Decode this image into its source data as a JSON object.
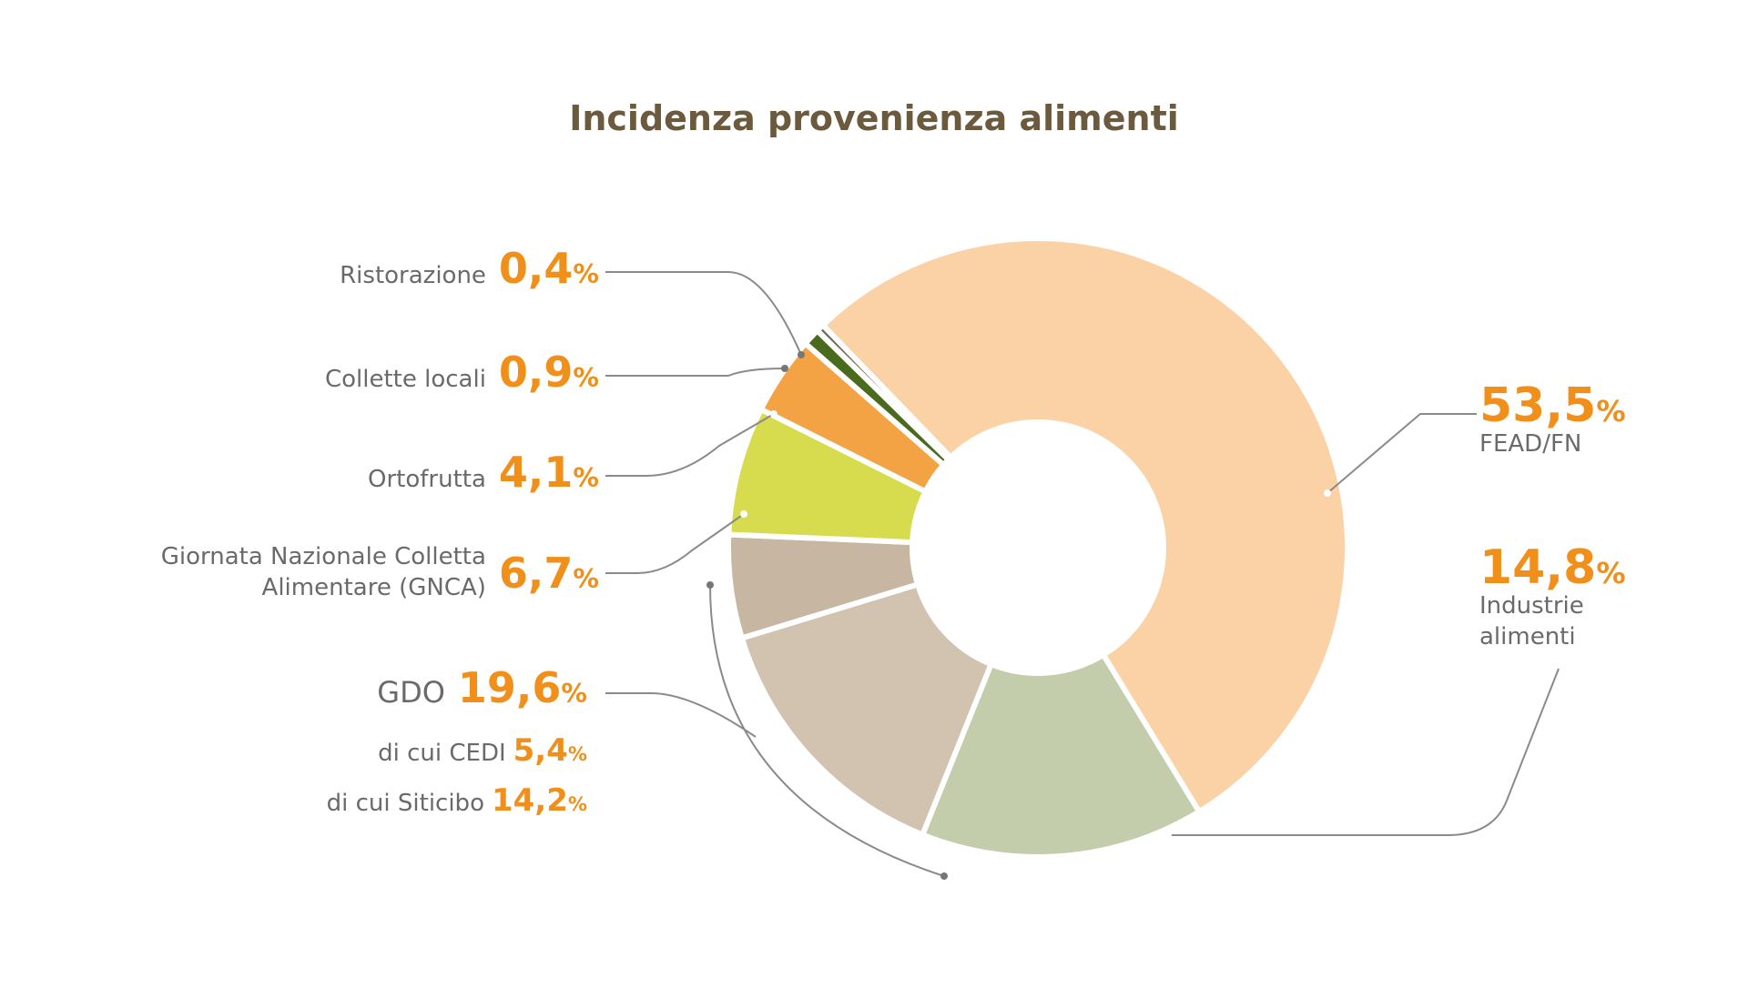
{
  "title": "Incidenza provenienza alimenti",
  "colors": {
    "value_orange": "#f0901a",
    "title_brown": "#6b5a3e",
    "leader": "#8a8a8a"
  },
  "labels": {
    "ristorazione": {
      "name": "Ristorazione",
      "value": "0,4",
      "unit": "%"
    },
    "collette": {
      "name": "Collette locali",
      "value": "0,9",
      "unit": "%"
    },
    "ortofrutta": {
      "name": "Ortofrutta",
      "value": "4,1",
      "unit": "%"
    },
    "gnca": {
      "name_line1": "Giornata Nazionale Colletta",
      "name_line2": "Alimentare (GNCA)",
      "value": "6,7",
      "unit": "%"
    },
    "gdo": {
      "name": "GDO",
      "value": "19,6",
      "unit": "%"
    },
    "cedi": {
      "name": "di cui CEDI",
      "value": "5,4",
      "unit": "%"
    },
    "siticibo": {
      "name": "di cui Siticibo",
      "value": "14,2",
      "unit": "%"
    },
    "fead": {
      "name": "FEAD/FN",
      "value": "53,5",
      "unit": "%"
    },
    "industrie": {
      "name_line1": "Industrie",
      "name_line2": "alimenti",
      "value": "14,8",
      "unit": "%"
    }
  },
  "chart_data": {
    "type": "pie",
    "title": "Incidenza provenienza alimenti",
    "slices": [
      {
        "name": "FEAD/FN",
        "value": 53.5,
        "color": "#fbd2a6"
      },
      {
        "name": "Industrie alimenti",
        "value": 14.8,
        "color": "#c3ccab"
      },
      {
        "name": "di cui Siticibo",
        "value": 14.2,
        "color": "#d1c3b0"
      },
      {
        "name": "di cui CEDI",
        "value": 5.4,
        "color": "#c6b6a2"
      },
      {
        "name": "Giornata Nazionale Colletta Alimentare (GNCA)",
        "value": 6.7,
        "color": "#d6dc4e"
      },
      {
        "name": "Ortofrutta",
        "value": 4.1,
        "color": "#f4a344"
      },
      {
        "name": "Collette locali",
        "value": 0.9,
        "color": "#4a6a1e"
      },
      {
        "name": "Ristorazione",
        "value": 0.4,
        "color": "#6f6a5a"
      }
    ],
    "donut": true
  }
}
